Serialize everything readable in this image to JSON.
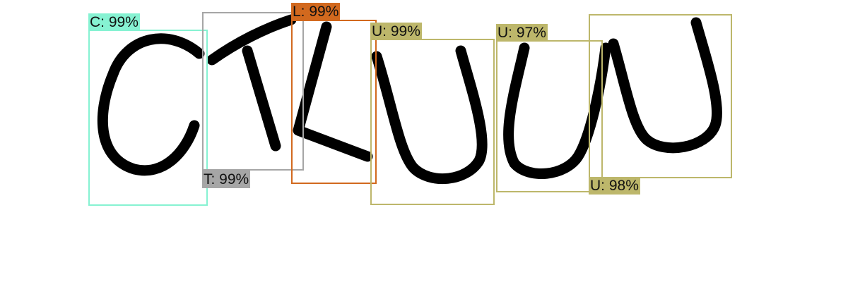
{
  "detections": [
    {
      "label": "C: 99%",
      "color": "#86f2d2"
    },
    {
      "label": "T: 99%",
      "color": "#a6a6a6"
    },
    {
      "label": "L: 99%",
      "color": "#d2691e"
    },
    {
      "label": "U: 99%",
      "color": "#bdb76b"
    },
    {
      "label": "U: 97%",
      "color": "#bdb76b"
    },
    {
      "label": "U: 98%",
      "color": "#bdb76b"
    }
  ]
}
